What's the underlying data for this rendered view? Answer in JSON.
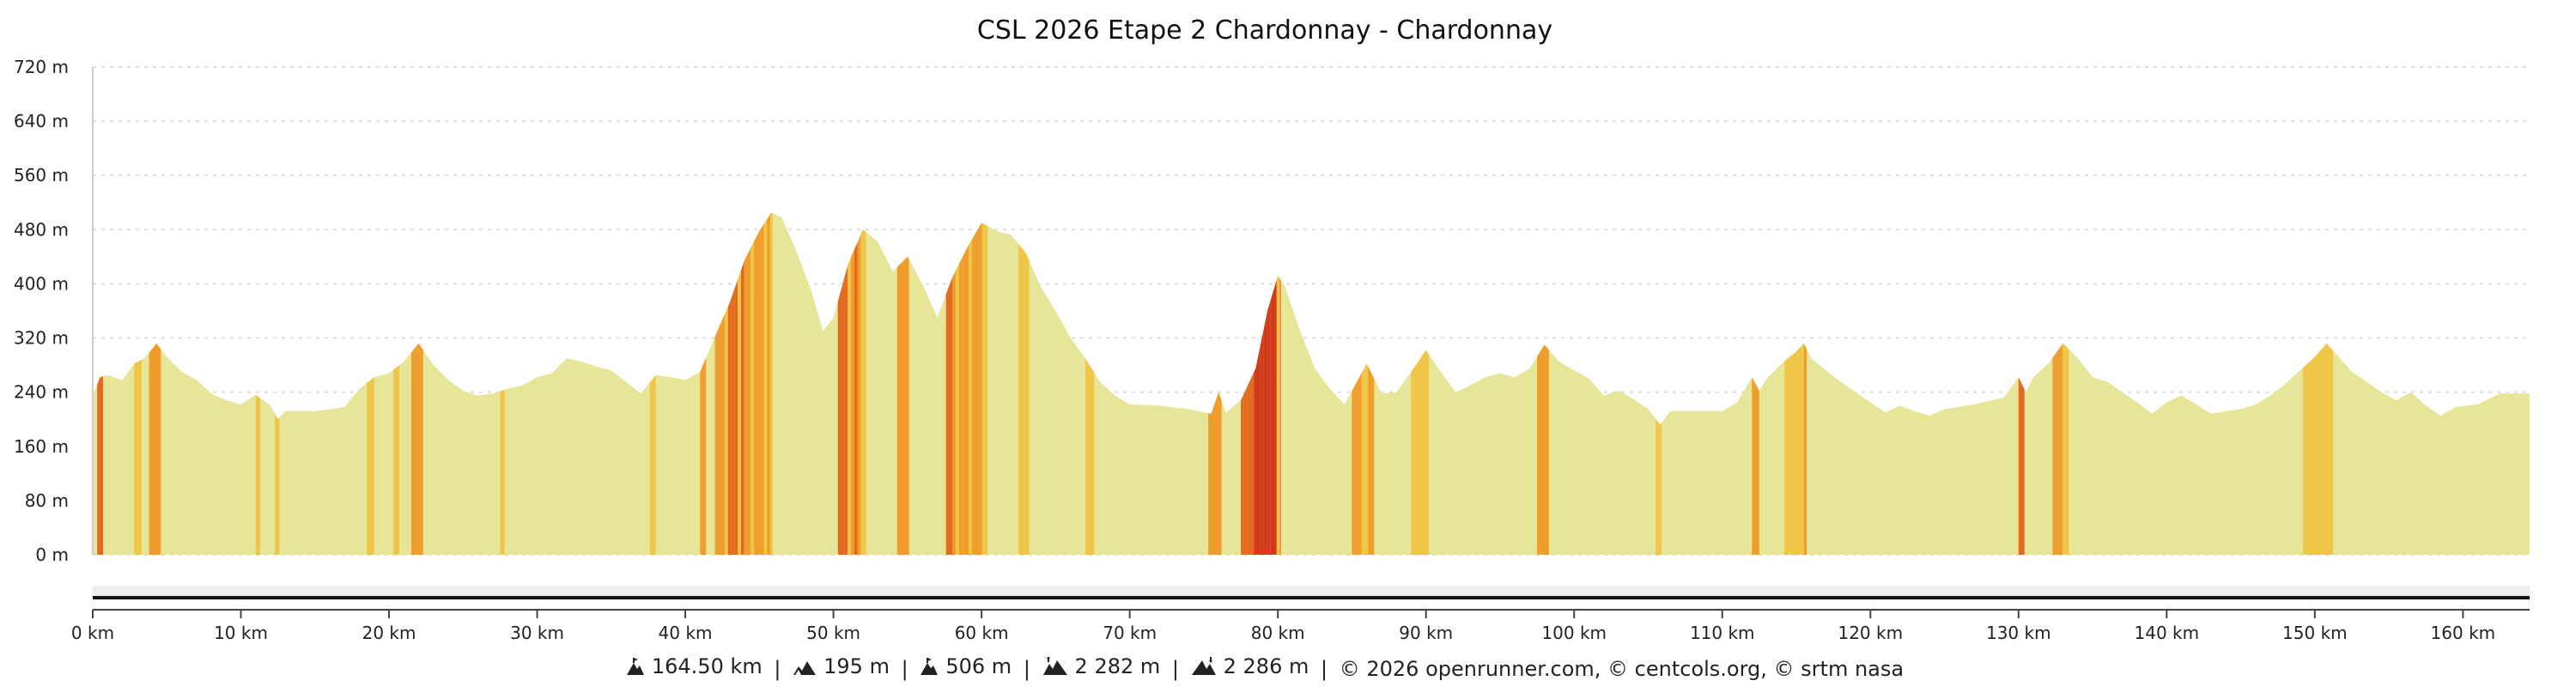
{
  "chart_data": {
    "type": "area",
    "title": "CSL 2026 Etape 2 Chardonnay - Chardonnay",
    "xlabel": "",
    "ylabel": "",
    "x_unit": "km",
    "y_unit": "m",
    "xlim": [
      0,
      164.5
    ],
    "ylim": [
      0,
      720
    ],
    "x_ticks": [
      {
        "value": 0,
        "label": "0 km"
      },
      {
        "value": 10,
        "label": "10 km"
      },
      {
        "value": 20,
        "label": "20 km"
      },
      {
        "value": 30,
        "label": "30 km"
      },
      {
        "value": 40,
        "label": "40 km"
      },
      {
        "value": 50,
        "label": "50 km"
      },
      {
        "value": 60,
        "label": "60 km"
      },
      {
        "value": 70,
        "label": "70 km"
      },
      {
        "value": 80,
        "label": "80 km"
      },
      {
        "value": 90,
        "label": "90 km"
      },
      {
        "value": 100,
        "label": "100 km"
      },
      {
        "value": 110,
        "label": "110 km"
      },
      {
        "value": 120,
        "label": "120 km"
      },
      {
        "value": 130,
        "label": "130 km"
      },
      {
        "value": 140,
        "label": "140 km"
      },
      {
        "value": 150,
        "label": "150 km"
      },
      {
        "value": 160,
        "label": "160 km"
      }
    ],
    "y_ticks": [
      {
        "value": 0,
        "label": "0 m"
      },
      {
        "value": 80,
        "label": "80 m"
      },
      {
        "value": 160,
        "label": "160 m"
      },
      {
        "value": 240,
        "label": "240 m"
      },
      {
        "value": 320,
        "label": "320 m"
      },
      {
        "value": 400,
        "label": "400 m"
      },
      {
        "value": 480,
        "label": "480 m"
      },
      {
        "value": 560,
        "label": "560 m"
      },
      {
        "value": 640,
        "label": "640 m"
      },
      {
        "value": 720,
        "label": "720 m"
      }
    ],
    "grid": true,
    "legend": "none",
    "colors": {
      "base": "#e6e598",
      "light": "#f0c648",
      "medium": "#ef9d2c",
      "steep": "#e36a1e",
      "very_steep": "#d13b1c",
      "grid": "#dddddd",
      "track": "#111111"
    },
    "profile": [
      [
        0,
        235
      ],
      [
        0.5,
        262
      ],
      [
        1,
        265
      ],
      [
        2,
        258
      ],
      [
        2.8,
        282
      ],
      [
        3.5,
        290
      ],
      [
        4.3,
        312
      ],
      [
        5,
        292
      ],
      [
        6,
        270
      ],
      [
        7,
        258
      ],
      [
        8,
        238
      ],
      [
        9,
        228
      ],
      [
        10,
        222
      ],
      [
        11,
        236
      ],
      [
        12,
        220
      ],
      [
        12.5,
        200
      ],
      [
        13,
        212
      ],
      [
        15,
        212
      ],
      [
        17,
        218
      ],
      [
        18,
        245
      ],
      [
        19,
        262
      ],
      [
        20,
        268
      ],
      [
        21,
        285
      ],
      [
        22,
        312
      ],
      [
        23,
        280
      ],
      [
        24,
        258
      ],
      [
        25,
        242
      ],
      [
        26,
        235
      ],
      [
        27,
        238
      ],
      [
        28,
        245
      ],
      [
        29,
        250
      ],
      [
        30,
        262
      ],
      [
        31,
        268
      ],
      [
        32,
        290
      ],
      [
        33,
        285
      ],
      [
        34,
        278
      ],
      [
        35,
        272
      ],
      [
        36,
        255
      ],
      [
        37,
        238
      ],
      [
        38,
        265
      ],
      [
        39,
        262
      ],
      [
        40,
        258
      ],
      [
        41,
        270
      ],
      [
        42,
        322
      ],
      [
        43,
        372
      ],
      [
        44,
        435
      ],
      [
        45,
        478
      ],
      [
        45.8,
        505
      ],
      [
        46.5,
        498
      ],
      [
        47.5,
        448
      ],
      [
        48.5,
        390
      ],
      [
        49.3,
        330
      ],
      [
        50,
        350
      ],
      [
        51,
        430
      ],
      [
        52,
        480
      ],
      [
        53,
        462
      ],
      [
        54,
        418
      ],
      [
        55,
        440
      ],
      [
        56,
        400
      ],
      [
        57,
        350
      ],
      [
        58,
        408
      ],
      [
        59,
        452
      ],
      [
        60,
        490
      ],
      [
        61,
        478
      ],
      [
        62,
        472
      ],
      [
        63,
        445
      ],
      [
        64,
        395
      ],
      [
        65,
        360
      ],
      [
        66,
        320
      ],
      [
        67,
        290
      ],
      [
        68,
        255
      ],
      [
        69,
        235
      ],
      [
        70,
        222
      ],
      [
        72,
        220
      ],
      [
        74,
        215
      ],
      [
        75.5,
        208
      ],
      [
        76,
        240
      ],
      [
        76.5,
        210
      ],
      [
        77.5,
        228
      ],
      [
        78.5,
        275
      ],
      [
        79.3,
        360
      ],
      [
        80,
        412
      ],
      [
        80.5,
        395
      ],
      [
        81.5,
        330
      ],
      [
        82.5,
        275
      ],
      [
        83.5,
        245
      ],
      [
        84.5,
        222
      ],
      [
        85.5,
        262
      ],
      [
        86,
        282
      ],
      [
        87,
        238
      ],
      [
        88,
        240
      ],
      [
        89,
        270
      ],
      [
        90,
        302
      ],
      [
        91,
        270
      ],
      [
        92,
        240
      ],
      [
        93,
        250
      ],
      [
        94,
        262
      ],
      [
        95,
        268
      ],
      [
        96,
        262
      ],
      [
        97,
        275
      ],
      [
        98,
        310
      ],
      [
        99,
        285
      ],
      [
        100,
        272
      ],
      [
        101,
        260
      ],
      [
        102,
        235
      ],
      [
        103,
        242
      ],
      [
        104,
        230
      ],
      [
        105,
        215
      ],
      [
        105.8,
        192
      ],
      [
        106.5,
        212
      ],
      [
        108,
        212
      ],
      [
        110,
        212
      ],
      [
        111,
        225
      ],
      [
        112,
        262
      ],
      [
        112.5,
        242
      ],
      [
        113,
        260
      ],
      [
        114,
        282
      ],
      [
        115,
        300
      ],
      [
        115.5,
        312
      ],
      [
        116,
        290
      ],
      [
        117,
        272
      ],
      [
        118,
        255
      ],
      [
        119,
        240
      ],
      [
        120,
        225
      ],
      [
        121,
        210
      ],
      [
        122,
        220
      ],
      [
        123,
        212
      ],
      [
        124,
        205
      ],
      [
        125,
        215
      ],
      [
        127,
        222
      ],
      [
        129,
        232
      ],
      [
        130,
        262
      ],
      [
        130.5,
        240
      ],
      [
        131,
        262
      ],
      [
        132,
        282
      ],
      [
        133,
        312
      ],
      [
        134,
        290
      ],
      [
        135,
        262
      ],
      [
        136,
        255
      ],
      [
        137,
        240
      ],
      [
        138,
        225
      ],
      [
        139,
        208
      ],
      [
        140,
        225
      ],
      [
        141,
        235
      ],
      [
        142,
        222
      ],
      [
        143,
        208
      ],
      [
        144,
        212
      ],
      [
        145,
        215
      ],
      [
        146,
        222
      ],
      [
        147,
        235
      ],
      [
        148,
        252
      ],
      [
        149,
        272
      ],
      [
        150,
        292
      ],
      [
        150.8,
        312
      ],
      [
        151.5,
        295
      ],
      [
        152.5,
        270
      ],
      [
        153.5,
        255
      ],
      [
        154.5,
        240
      ],
      [
        155.5,
        228
      ],
      [
        156.5,
        240
      ],
      [
        157.5,
        220
      ],
      [
        158.5,
        205
      ],
      [
        159.5,
        218
      ],
      [
        161,
        222
      ],
      [
        162.5,
        238
      ],
      [
        164.5,
        238
      ]
    ],
    "gradient_segments": [
      {
        "start": 0.3,
        "end": 0.7,
        "level": "steep"
      },
      {
        "start": 2.8,
        "end": 3.3,
        "level": "light"
      },
      {
        "start": 3.8,
        "end": 4.6,
        "level": "medium"
      },
      {
        "start": 11.0,
        "end": 11.3,
        "level": "light"
      },
      {
        "start": 12.3,
        "end": 12.6,
        "level": "light"
      },
      {
        "start": 18.5,
        "end": 19.0,
        "level": "light"
      },
      {
        "start": 20.3,
        "end": 20.7,
        "level": "light"
      },
      {
        "start": 21.5,
        "end": 22.3,
        "level": "medium"
      },
      {
        "start": 27.5,
        "end": 27.8,
        "level": "light"
      },
      {
        "start": 37.6,
        "end": 38.0,
        "level": "light"
      },
      {
        "start": 41.0,
        "end": 41.4,
        "level": "medium"
      },
      {
        "start": 42.0,
        "end": 45.9,
        "level": "mixed"
      },
      {
        "start": 50.3,
        "end": 52.2,
        "level": "mixed"
      },
      {
        "start": 54.3,
        "end": 55.1,
        "level": "medium"
      },
      {
        "start": 57.6,
        "end": 60.4,
        "level": "mixed"
      },
      {
        "start": 62.5,
        "end": 63.2,
        "level": "light"
      },
      {
        "start": 67.0,
        "end": 67.6,
        "level": "light"
      },
      {
        "start": 75.3,
        "end": 76.2,
        "level": "medium"
      },
      {
        "start": 77.5,
        "end": 80.2,
        "level": "mixed_steep"
      },
      {
        "start": 85.0,
        "end": 86.5,
        "level": "mixed"
      },
      {
        "start": 89.0,
        "end": 90.2,
        "level": "light"
      },
      {
        "start": 97.5,
        "end": 98.3,
        "level": "medium"
      },
      {
        "start": 105.5,
        "end": 105.9,
        "level": "light"
      },
      {
        "start": 112.0,
        "end": 112.5,
        "level": "medium"
      },
      {
        "start": 114.2,
        "end": 115.7,
        "level": "mixed"
      },
      {
        "start": 130.0,
        "end": 130.4,
        "level": "steep"
      },
      {
        "start": 132.3,
        "end": 133.4,
        "level": "mixed"
      },
      {
        "start": 149.2,
        "end": 151.2,
        "level": "mixed"
      }
    ]
  },
  "footer": {
    "distance": "164.50 km",
    "min_altitude": "195 m",
    "max_altitude": "506 m",
    "elevation_gain": "2 282 m",
    "elevation_loss": "2 286 m",
    "credits": "© 2026 openrunner.com, © centcols.org, © srtm nasa",
    "separator": "|"
  }
}
